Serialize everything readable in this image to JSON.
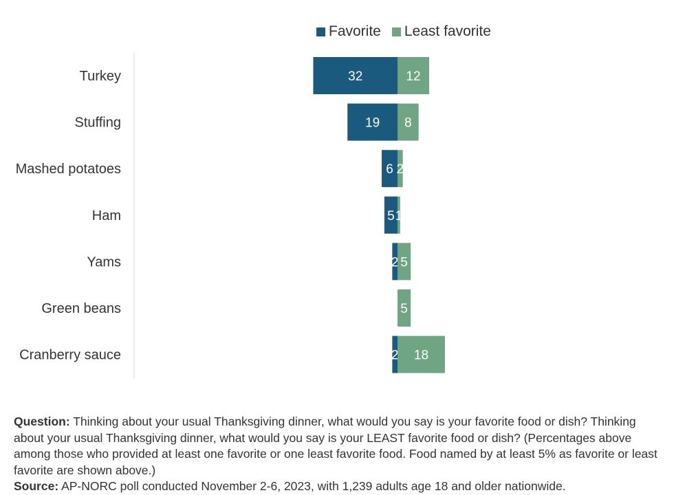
{
  "chart_data": {
    "type": "bar",
    "orientation": "horizontal-diverging",
    "categories": [
      "Turkey",
      "Stuffing",
      "Mashed potatoes",
      "Ham",
      "Yams",
      "Green beans",
      "Cranberry sauce"
    ],
    "series": [
      {
        "name": "Favorite",
        "values": [
          32,
          19,
          6,
          5,
          2,
          null,
          2
        ],
        "color": "#1a5a7e"
      },
      {
        "name": "Least favorite",
        "values": [
          12,
          8,
          2,
          1,
          5,
          5,
          18
        ],
        "color": "#6fa582"
      }
    ],
    "legend_position": "top",
    "grid": false
  },
  "notes": {
    "question_label": "Question:",
    "question_text": "Thinking about your usual Thanksgiving dinner, what would you say is your favorite food or dish? Thinking about your usual Thanksgiving dinner, what would you say is your LEAST favorite food or dish? (Percentages above among those who provided at least one favorite or one least favorite food. Food named by at least 5% as favorite or least favorite are shown above.)",
    "source_label": "Source:",
    "source_text": "AP-NORC poll conducted November 2-6, 2023, with 1,239 adults age 18 and older nationwide."
  }
}
